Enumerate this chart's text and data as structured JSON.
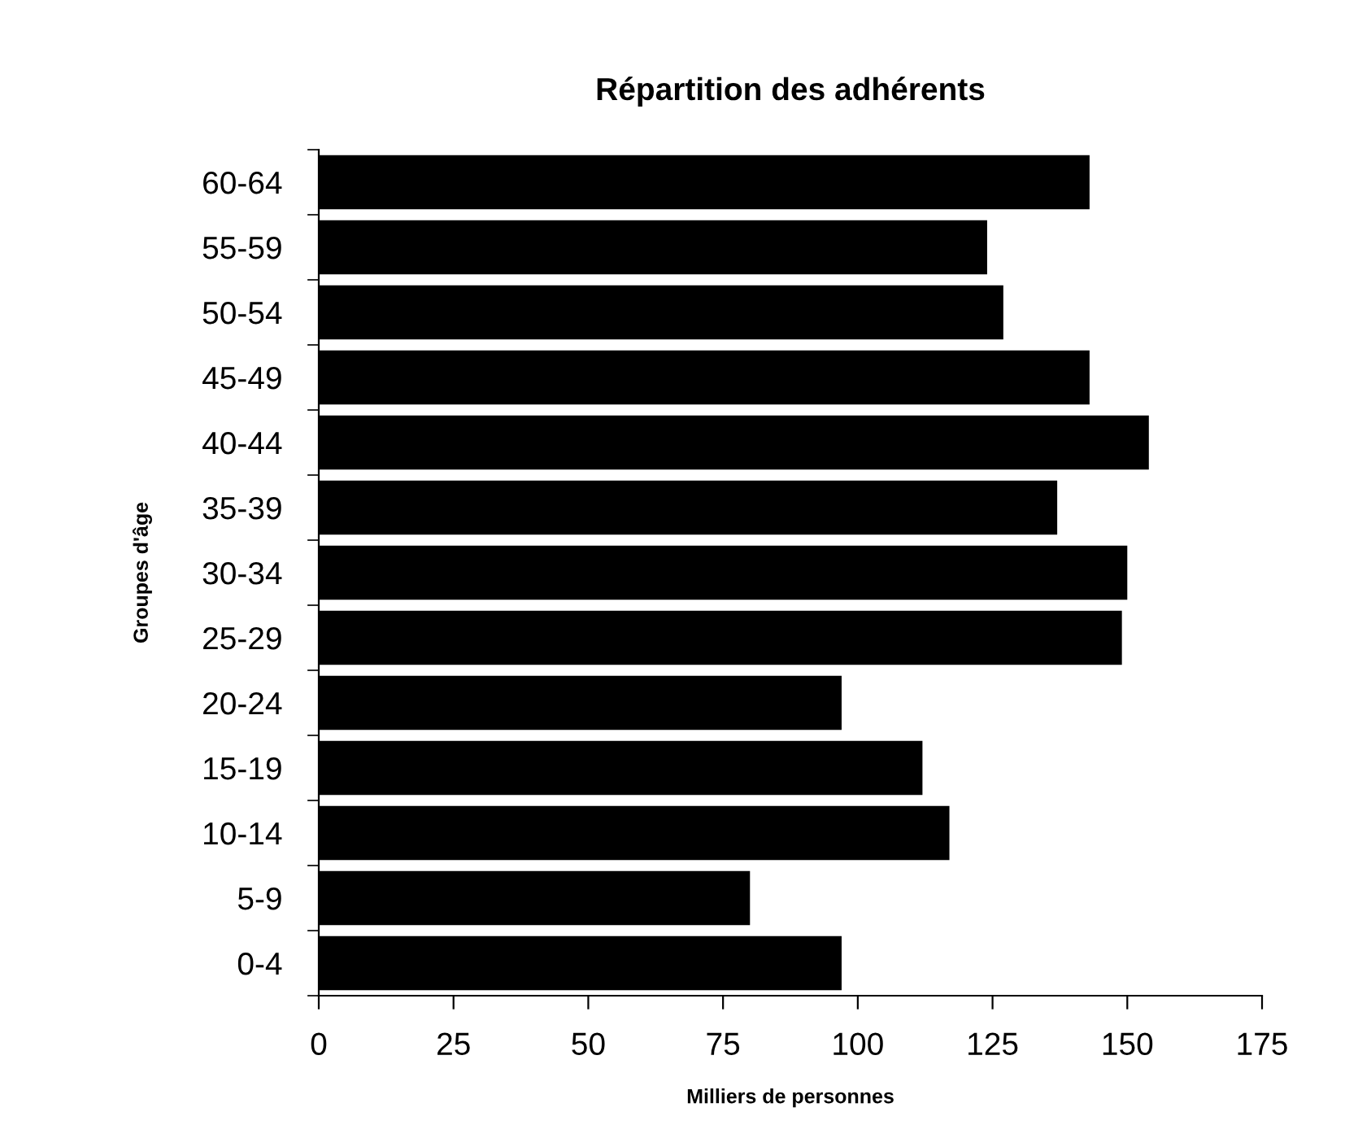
{
  "chart_data": {
    "type": "bar",
    "orientation": "horizontal",
    "title": "Répartition des adhérents",
    "xlabel": "Milliers de personnes",
    "ylabel": "Groupes d'âge",
    "categories": [
      "60-64",
      "55-59",
      "50-54",
      "45-49",
      "40-44",
      "35-39",
      "30-34",
      "25-29",
      "20-24",
      "15-19",
      "10-14",
      "5-9",
      "0-4"
    ],
    "values": [
      143,
      124,
      127,
      143,
      154,
      137,
      150,
      149,
      97,
      112,
      117,
      80,
      97
    ],
    "color": "#000000",
    "xlim": [
      0,
      175
    ],
    "xticks": [
      0,
      25,
      50,
      75,
      100,
      125,
      150,
      175
    ],
    "grid": false,
    "legend": false
  }
}
